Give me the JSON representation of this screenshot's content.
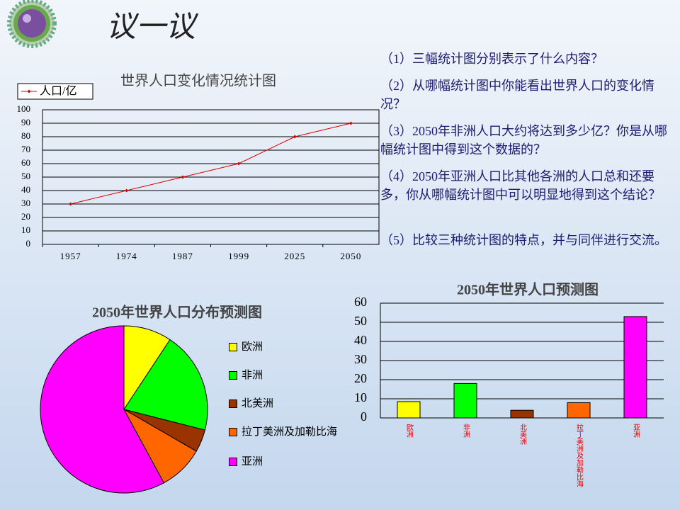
{
  "title": "议一议",
  "questions": [
    "（1）三幅统计图分别表示了什么内容？",
    "（2）从哪幅统计图中你能看出世界人口的变化情况？",
    "（3）2050年非洲人口大约将达到多少亿？你是从哪幅统计图中得到这个数据的？",
    "（4）2050年亚洲人口比其他各洲的人口总和还要多，你从哪幅统计图中可以明显地得到这个结论？",
    "（5）比较三种统计图的特点，并与同伴进行交流。"
  ],
  "chart_data": [
    {
      "type": "line",
      "title": "世界人口变化情况统计图",
      "categories": [
        "1957",
        "1974",
        "1987",
        "1999",
        "2025",
        "2050"
      ],
      "series": [
        {
          "name": "人口/亿",
          "color": "#e00000",
          "values": [
            30,
            40,
            50,
            60,
            80,
            90
          ]
        }
      ],
      "ylim": [
        0,
        100
      ],
      "yticks": [
        0,
        10,
        20,
        30,
        40,
        50,
        60,
        70,
        80,
        90,
        100
      ],
      "grid": true,
      "legend": "top-left"
    },
    {
      "type": "pie",
      "title": "2050年世界人口分布预测图",
      "categories": [
        "欧洲",
        "非洲",
        "北美洲",
        "拉丁美洲及加勒比海",
        "亚洲"
      ],
      "values": [
        8.5,
        18,
        4,
        8,
        53
      ],
      "colors": [
        "#ffff00",
        "#00ff00",
        "#993300",
        "#ff6600",
        "#ff00ff"
      ],
      "legend": "right"
    },
    {
      "type": "bar",
      "title": "2050年世界人口预测图",
      "categories": [
        "欧洲",
        "非洲",
        "北美洲",
        "拉丁美洲及加勒比海",
        "亚洲"
      ],
      "values": [
        8.5,
        18,
        4,
        8,
        53
      ],
      "colors": [
        "#ffff00",
        "#00ff00",
        "#993300",
        "#ff6600",
        "#ff00ff"
      ],
      "label_color": "#e00000",
      "ylim": [
        0,
        60
      ],
      "yticks": [
        0,
        10,
        20,
        30,
        40,
        50,
        60
      ],
      "grid": true
    }
  ]
}
